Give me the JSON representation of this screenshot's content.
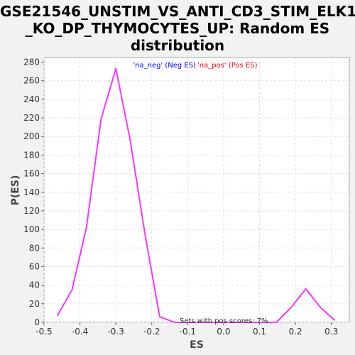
{
  "chart_data": {
    "type": "line",
    "title_lines": [
      "GSE21546_UNSTIM_VS_ANTI_CD3_STIM_ELK1",
      "_KO_DP_THYMOCYTES_UP: Random ES",
      "distribution"
    ],
    "xlabel": "ES",
    "ylabel": "P(ES)",
    "xlim": [
      -0.5,
      0.35
    ],
    "ylim": [
      0,
      285
    ],
    "xticks": [
      -0.5,
      -0.4,
      -0.3,
      -0.2,
      -0.1,
      0.0,
      0.1,
      0.2,
      0.3
    ],
    "xtick_labels": [
      "-0.5",
      "-0.4",
      "-0.3",
      "-0.2",
      "-0.1",
      "0.0",
      "0.1",
      "0.2",
      "0.3"
    ],
    "yticks": [
      0,
      20,
      40,
      60,
      80,
      100,
      120,
      140,
      160,
      180,
      200,
      220,
      240,
      260,
      280
    ],
    "ytick_labels": [
      "0",
      "20",
      "40",
      "60",
      "80",
      "100",
      "120",
      "140",
      "160",
      "180",
      "200",
      "220",
      "240",
      "260",
      "280"
    ],
    "grid": true,
    "legend_position": "top-center",
    "legend": [
      {
        "label": "'na_neg' (Neg ES)",
        "color": "#0000ff"
      },
      {
        "label": "'na_pos' (Pos ES)",
        "color": "#ff0000"
      }
    ],
    "annotation": "Sets with pos scores: 7%",
    "series": [
      {
        "color": "#ff33ff",
        "x": [
          -0.463,
          -0.422,
          -0.382,
          -0.341,
          -0.3,
          -0.26,
          -0.219,
          -0.178,
          -0.137,
          -0.097,
          -0.056,
          -0.015,
          0.025,
          0.066,
          0.107,
          0.147,
          0.188,
          0.229,
          0.27,
          0.31
        ],
        "y": [
          7,
          35,
          102,
          219,
          273,
          196,
          95,
          6,
          0,
          0,
          0,
          0,
          0,
          0,
          0,
          0,
          16,
          36,
          16,
          2
        ]
      }
    ]
  }
}
